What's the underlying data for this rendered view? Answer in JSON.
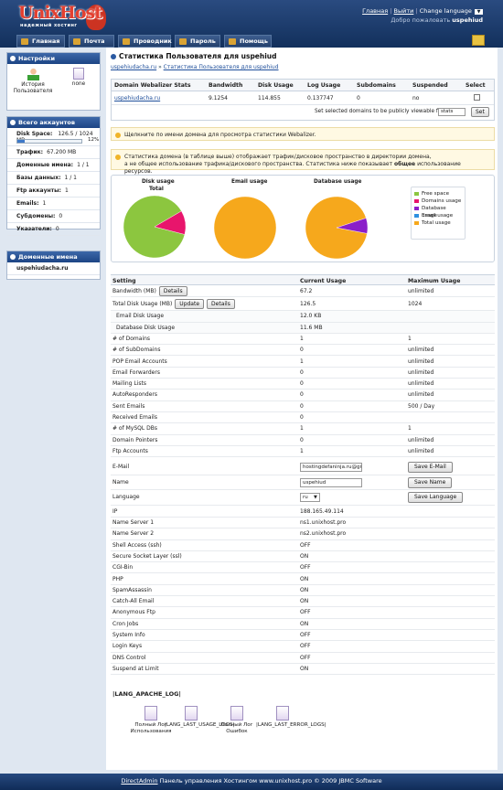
{
  "header": {
    "logo_text": "UnixHost",
    "logo_sub": "надежный хостинг",
    "links": [
      "Главная",
      "Выйти"
    ],
    "change_language": "Change language",
    "welcome_prefix": "Добро пожаловать",
    "username": "uspehiud"
  },
  "nav": {
    "tabs": [
      "Главная",
      "Почта",
      "Проводник",
      "Пароль",
      "Помощь"
    ]
  },
  "sidebar": {
    "settings_title": "Настройки",
    "settings_items": [
      "История Пользователя",
      "none"
    ],
    "accounts_title": "Всего аккаунтов",
    "disk_label": "Disk Space:",
    "disk_value": "126.5 / 1024 MB",
    "disk_percent": 12,
    "disk_percent_text": "12%",
    "stats": [
      {
        "label": "Трафик:",
        "value": "67.200 MB"
      },
      {
        "label": "Доменные имена:",
        "value": "1 / 1"
      },
      {
        "label": "Базы данных:",
        "value": "1 / 1"
      },
      {
        "label": "Ftp аккаунты:",
        "value": "1"
      },
      {
        "label": "Emails:",
        "value": "1"
      },
      {
        "label": "Субдомены:",
        "value": "0"
      },
      {
        "label": "Указатели:",
        "value": "0"
      }
    ],
    "domains_title": "Доменные имена",
    "domain": "uspehiudacha.ru"
  },
  "page": {
    "title": "Статистика Пользователя для uspehiud",
    "crumb_home": "uspehiudacha.ru",
    "crumb_sep": "»",
    "crumb_current": "Статистика Пользователя для uspehiud"
  },
  "domains_table": {
    "headers": [
      "Domain Webalizer Stats",
      "Bandwidth",
      "Disk Usage",
      "Log Usage",
      "Subdomains",
      "Suspended",
      "Select"
    ],
    "row": [
      "uspehiudacha.ru",
      "9.1254",
      "114.855",
      "0.137747",
      "0",
      "no"
    ],
    "public_text": "Set selected domains to be publicly viewable from /",
    "public_input": "stats",
    "set_button": "Set"
  },
  "notes": {
    "note1": "Щелкните по имени домена для просмотра статистики Webalizer.",
    "note2a": "Статистика домена (в таблице выше) отображает трафик/дисковое пространство в директории домена,",
    "note2b": "а не общее использование трафика/дискового пространства. Статистика ниже показывает",
    "note2bold": "общее",
    "note2c": "использование ресурсов."
  },
  "charts": {
    "titles": [
      "Disk usage",
      "Total",
      "Email usage",
      "Database usage"
    ],
    "legend": [
      "Free space",
      "Domains usage",
      "Database usage",
      "Email usage",
      "Total usage"
    ],
    "legend_colors": [
      "#8cc63f",
      "#e8156c",
      "#8b1fc9",
      "#2d8fe0",
      "#f6a81c"
    ]
  },
  "chart_data": [
    {
      "type": "pie",
      "title": "Disk usage",
      "subtitle": "Total",
      "slices": [
        {
          "label": "Free space",
          "value": 87.6,
          "color": "#8cc63f"
        },
        {
          "label": "Domains usage",
          "value": 12.4,
          "color": "#e8156c"
        }
      ]
    },
    {
      "type": "pie",
      "title": "Email usage",
      "slices": [
        {
          "label": "Total usage",
          "value": 100,
          "color": "#f6a81c"
        }
      ]
    },
    {
      "type": "pie",
      "title": "Database usage",
      "slices": [
        {
          "label": "Total usage",
          "value": 92,
          "color": "#f6a81c"
        },
        {
          "label": "Database usage",
          "value": 8,
          "color": "#8b1fc9"
        }
      ]
    }
  ],
  "settings_table": {
    "headers": [
      "Setting",
      "Current Usage",
      "Maximum Usage"
    ],
    "rows": [
      {
        "s": "Bandwidth (MB)",
        "c": "67.2",
        "m": "unlimited"
      },
      {
        "s": "Total Disk Usage (MB)",
        "c": "126.5",
        "m": "1024"
      },
      {
        "s": "Email Disk Usage",
        "c": "12.0 KB",
        "m": ""
      },
      {
        "s": "Database Disk Usage",
        "c": "11.6 MB",
        "m": ""
      },
      {
        "s": "# of Domains",
        "c": "1",
        "m": "1"
      },
      {
        "s": "# of SubDomains",
        "c": "0",
        "m": "unlimited"
      },
      {
        "s": "POP Email Accounts",
        "c": "1",
        "m": "unlimited"
      },
      {
        "s": "Email Forwarders",
        "c": "0",
        "m": "unlimited"
      },
      {
        "s": "Mailing Lists",
        "c": "0",
        "m": "unlimited"
      },
      {
        "s": "AutoResponders",
        "c": "0",
        "m": "unlimited"
      },
      {
        "s": "Sent Emails",
        "c": "0",
        "m": "500 / Day"
      },
      {
        "s": "Received Emails",
        "c": "0",
        "m": ""
      },
      {
        "s": "# of MySQL DBs",
        "c": "1",
        "m": "1"
      },
      {
        "s": "Domain Pointers",
        "c": "0",
        "m": "unlimited"
      },
      {
        "s": "Ftp Accounts",
        "c": "1",
        "m": "unlimited"
      }
    ],
    "details": "Details",
    "update": "Update",
    "email_label": "E-Mail",
    "email_value": "hostingdefaninja.ru@gmail.com",
    "save_email": "Save E-Mail",
    "name_label": "Name",
    "name_value": "uspehiud",
    "save_name": "Save Name",
    "lang_label": "Language",
    "lang_value": "ru",
    "save_lang": "Save Language",
    "info_rows": [
      {
        "s": "IP",
        "c": "188.165.49.114"
      },
      {
        "s": "Name Server 1",
        "c": "ns1.unixhost.pro"
      },
      {
        "s": "Name Server 2",
        "c": "ns2.unixhost.pro"
      },
      {
        "s": "Shell Access (ssh)",
        "c": "OFF"
      },
      {
        "s": "Secure Socket Layer (ssl)",
        "c": "ON"
      },
      {
        "s": "CGI-Bin",
        "c": "OFF"
      },
      {
        "s": "PHP",
        "c": "ON"
      },
      {
        "s": "SpamAssassin",
        "c": "ON"
      },
      {
        "s": "Catch-All Email",
        "c": "ON"
      },
      {
        "s": "Anonymous Ftp",
        "c": "OFF"
      },
      {
        "s": "Cron Jobs",
        "c": "ON"
      },
      {
        "s": "System Info",
        "c": "OFF"
      },
      {
        "s": "Login Keys",
        "c": "OFF"
      },
      {
        "s": "DNS Control",
        "c": "OFF"
      },
      {
        "s": "Suspend at Limit",
        "c": "ON"
      }
    ]
  },
  "logs": {
    "title": "|LANG_APACHE_LOG|",
    "items": [
      "Полный Лог Использования",
      "|LANG_LAST_USAGE_LOGS|",
      "Полный Лог Ошибок",
      "|LANG_LAST_ERROR_LOGS|"
    ]
  },
  "footer": {
    "link": "DirectAdmin",
    "text": "Панель управления Хостингом www.unixhost.pro © 2009 JBMC Software"
  }
}
